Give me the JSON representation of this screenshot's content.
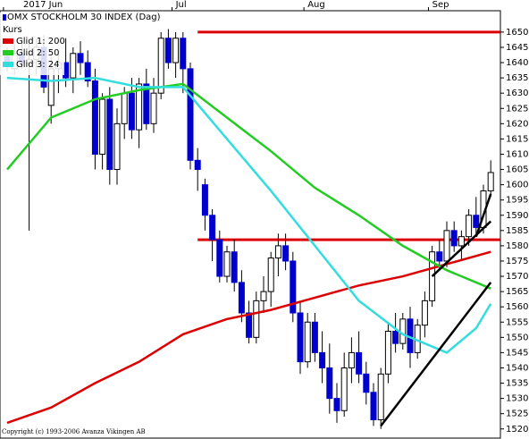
{
  "chart_data": {
    "type": "candlestick",
    "title": "OMX STOCKHOLM 30 INDEX (Dag)",
    "copyright": "Copyright (c) 1993-2006 Avanza Vikingen AB",
    "categories": [
      "2017 Jun",
      null,
      null,
      null,
      null,
      null,
      null,
      null,
      null,
      null,
      null,
      null,
      null,
      null,
      null,
      null,
      null,
      null,
      null,
      null,
      null,
      null,
      null,
      "Jul",
      null,
      null,
      null,
      null,
      null,
      null,
      null,
      null,
      null,
      null,
      null,
      null,
      null,
      null,
      null,
      null,
      null,
      "Aug",
      null,
      null,
      null,
      null,
      null,
      null,
      null,
      null,
      null,
      null,
      null,
      null,
      null,
      null,
      null,
      null,
      "Sep",
      null,
      null,
      null,
      null,
      null,
      null,
      null,
      null
    ],
    "candles": {
      "name": "Kurs",
      "up_color": "#ffffff",
      "down_color": "#0000cc",
      "open": [
        1642,
        1638,
        1643,
        1640,
        1641,
        1645,
        1626,
        1638,
        1640,
        1635,
        1643,
        1640,
        1634,
        1610,
        1628,
        1605,
        1620,
        1630,
        1618,
        1633,
        1620,
        1630,
        1648,
        1640,
        1648,
        1638,
        1608,
        1600,
        1590,
        1582,
        1570,
        1578,
        1568,
        1558,
        1550,
        1562,
        1565,
        1576,
        1580,
        1575,
        1558,
        1542,
        1555,
        1545,
        1540,
        1530,
        1526,
        1540,
        1545,
        1538,
        1532,
        1523,
        1538,
        1552,
        1548,
        1556,
        1545,
        1554,
        1562,
        1578,
        1575,
        1585,
        1580,
        1583,
        1590,
        1586,
        1598
      ],
      "high": [
        1645,
        1646,
        1648,
        1647,
        1648,
        1649,
        1642,
        1643,
        1648,
        1645,
        1647,
        1644,
        1638,
        1630,
        1632,
        1625,
        1632,
        1635,
        1635,
        1638,
        1635,
        1650,
        1651,
        1650,
        1650,
        1640,
        1612,
        1602,
        1592,
        1585,
        1580,
        1582,
        1572,
        1562,
        1565,
        1570,
        1578,
        1584,
        1584,
        1578,
        1562,
        1558,
        1558,
        1552,
        1548,
        1535,
        1545,
        1550,
        1552,
        1542,
        1535,
        1540,
        1555,
        1558,
        1558,
        1560,
        1556,
        1565,
        1580,
        1582,
        1588,
        1588,
        1585,
        1592,
        1596,
        1600,
        1608
      ],
      "low": [
        1637,
        1636,
        1638,
        1585,
        1636,
        1630,
        1620,
        1630,
        1632,
        1630,
        1636,
        1632,
        1605,
        1605,
        1600,
        1600,
        1615,
        1615,
        1612,
        1618,
        1617,
        1628,
        1638,
        1635,
        1630,
        1605,
        1598,
        1585,
        1575,
        1568,
        1568,
        1565,
        1555,
        1548,
        1548,
        1558,
        1560,
        1570,
        1572,
        1555,
        1538,
        1540,
        1542,
        1535,
        1525,
        1522,
        1524,
        1535,
        1535,
        1528,
        1521,
        1520,
        1535,
        1545,
        1546,
        1540,
        1543,
        1550,
        1560,
        1572,
        1573,
        1578,
        1575,
        1580,
        1583,
        1584,
        1596
      ],
      "close": [
        1639,
        1643,
        1640,
        1641,
        1645,
        1632,
        1638,
        1640,
        1635,
        1643,
        1640,
        1634,
        1610,
        1628,
        1605,
        1620,
        1630,
        1618,
        1633,
        1620,
        1630,
        1648,
        1640,
        1648,
        1638,
        1608,
        1605,
        1590,
        1582,
        1570,
        1578,
        1568,
        1558,
        1550,
        1562,
        1565,
        1576,
        1580,
        1575,
        1558,
        1542,
        1555,
        1545,
        1540,
        1530,
        1526,
        1540,
        1545,
        1538,
        1532,
        1523,
        1538,
        1552,
        1548,
        1556,
        1545,
        1554,
        1562,
        1578,
        1575,
        1585,
        1580,
        1583,
        1590,
        1586,
        1598,
        1604
      ]
    },
    "series": [
      {
        "name": "Glid 1: 200",
        "color": "#dd0000",
        "x": [
          0,
          6,
          12,
          18,
          24,
          30,
          36,
          42,
          48,
          54,
          60,
          66
        ],
        "values": [
          1522,
          1527,
          1535,
          1542,
          1551,
          1556,
          1559,
          1563,
          1567,
          1570,
          1574,
          1578
        ]
      },
      {
        "name": "Glid 2: 50",
        "color": "#22cc22",
        "x": [
          0,
          6,
          12,
          18,
          24,
          30,
          36,
          42,
          48,
          54,
          60,
          66
        ],
        "values": [
          1605,
          1622,
          1628,
          1631,
          1633,
          1622,
          1611,
          1599,
          1590,
          1580,
          1572,
          1566
        ]
      },
      {
        "name": "Glid 3: 24",
        "color": "#33dddd",
        "x": [
          0,
          6,
          12,
          18,
          24,
          30,
          36,
          42,
          48,
          54,
          60,
          64,
          66
        ],
        "values": [
          1635,
          1634,
          1635,
          1632,
          1632,
          1615,
          1598,
          1580,
          1562,
          1551,
          1545,
          1553,
          1561
        ]
      }
    ],
    "hlines": [
      {
        "value": 1650,
        "from": 26,
        "color": "#dd0000"
      },
      {
        "value": 1582,
        "from": 26,
        "color": "#dd0000"
      }
    ],
    "trendlines": [
      {
        "x": [
          51,
          66
        ],
        "y": [
          1521,
          1568
        ]
      },
      {
        "x": [
          58,
          66
        ],
        "y": [
          1570,
          1588
        ]
      },
      {
        "x": [
          64,
          66
        ],
        "y": [
          1583,
          1597
        ]
      }
    ],
    "ylim": [
      1517,
      1657
    ],
    "yticks": [
      1520,
      1525,
      1530,
      1535,
      1540,
      1545,
      1550,
      1555,
      1560,
      1565,
      1570,
      1575,
      1580,
      1585,
      1590,
      1595,
      1600,
      1605,
      1610,
      1615,
      1620,
      1625,
      1630,
      1635,
      1640,
      1645,
      1650
    ]
  }
}
